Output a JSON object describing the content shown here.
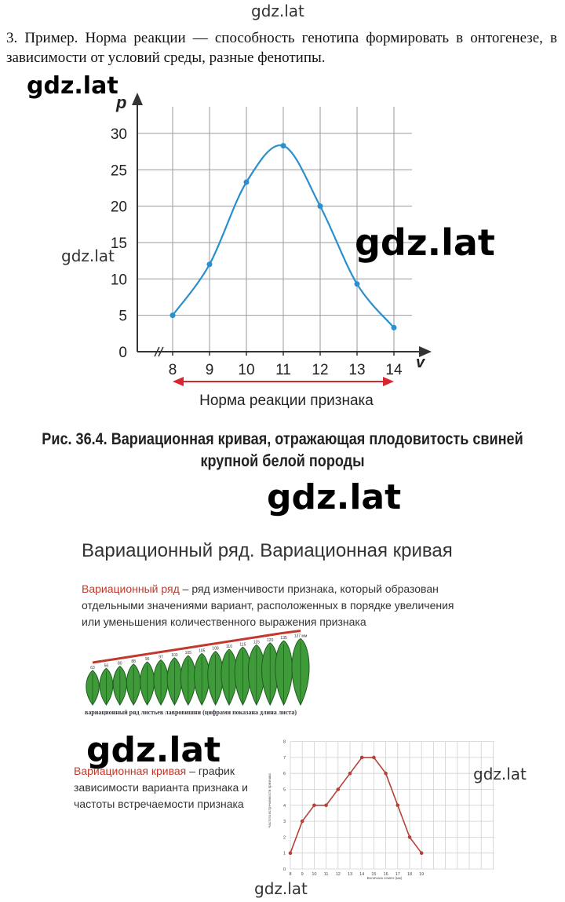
{
  "watermarks": {
    "top": "gdz.lat",
    "chart_left_big": "gdz.lat",
    "chart_right_big": "gdz.lat",
    "chart_left_small": "gdz.lat",
    "middle_big": "gdz.lat",
    "lower_left_big": "gdz.lat",
    "lower_right_small": "gdz.lat",
    "bottom": "gdz.lat"
  },
  "intro_text": "3. Пример. Норма реакции — способность генотипа формировать в онтогенезе, в зависимости от условий среды, разные фенотипы.",
  "main_chart": {
    "ylabel": "p",
    "xlabel": "v",
    "range_label": "Норма реакции признака",
    "colors": {
      "curve": "#2a8fce",
      "grid": "#9a9a9a",
      "arrow": "#d9262e"
    }
  },
  "caption_line1": "Рис. 36.4. Вариационная кривая, отражающая плодовитость свиней",
  "caption_line2": "крупной белой породы",
  "slide": {
    "title": "Вариационный ряд. Вариационная кривая",
    "vr_term": "Вариационный ряд",
    "vr_rest": " – ряд изменчивости признака, который образован отдельными значениями  вариант, расположенных в порядке увеличения или уменьшения количественного выражения признака",
    "leaf_values": [
      "63",
      "56",
      "80",
      "88",
      "96",
      "97",
      "103",
      "105",
      "105",
      "108",
      "110",
      "115",
      "115",
      "120",
      "135",
      "137 мм"
    ],
    "leaf_caption": "вариационный ряд листьев лавровишни (цифрами показана длина листа)",
    "vc_term": "Вариационная кривая",
    "vc_rest": " – график зависимости варианта признака и частоты встречаемости признака",
    "small_chart_ylabel": "Частота встречаемости признака",
    "small_chart_xlabel": "Величина семян (мм)",
    "colors": {
      "red": "#c0392b",
      "leaf": "#3f9a3a",
      "leaf_dark": "#1f5e1f",
      "small_curve": "#b5413a"
    }
  },
  "chart_data": [
    {
      "type": "line",
      "x": [
        8,
        9,
        10,
        11,
        12,
        13,
        14
      ],
      "y": [
        5,
        12,
        23.3,
        28.3,
        20,
        9.3,
        3.3
      ],
      "xlabel": "v",
      "ylabel": "p",
      "ylim": [
        0,
        30
      ],
      "yticks": [
        0,
        5,
        10,
        15,
        20,
        25,
        30
      ],
      "xticks": [
        8,
        9,
        10,
        11,
        12,
        13,
        14
      ],
      "grid": true
    },
    {
      "type": "line",
      "x": [
        8,
        9,
        10,
        11,
        12,
        13,
        14,
        15,
        16,
        17,
        18,
        19
      ],
      "y": [
        1,
        3,
        4,
        4,
        5,
        6,
        7,
        7,
        6,
        4,
        2,
        1
      ],
      "xlabel": "Величина семян (мм)",
      "ylabel": "Частота встречаемости признака",
      "ylim": [
        0,
        8
      ],
      "yticks": [
        0,
        1,
        2,
        3,
        4,
        5,
        6,
        7,
        8
      ],
      "xticks": [
        8,
        9,
        10,
        11,
        12,
        13,
        14,
        15,
        16,
        17,
        18,
        19
      ],
      "grid": true
    }
  ]
}
